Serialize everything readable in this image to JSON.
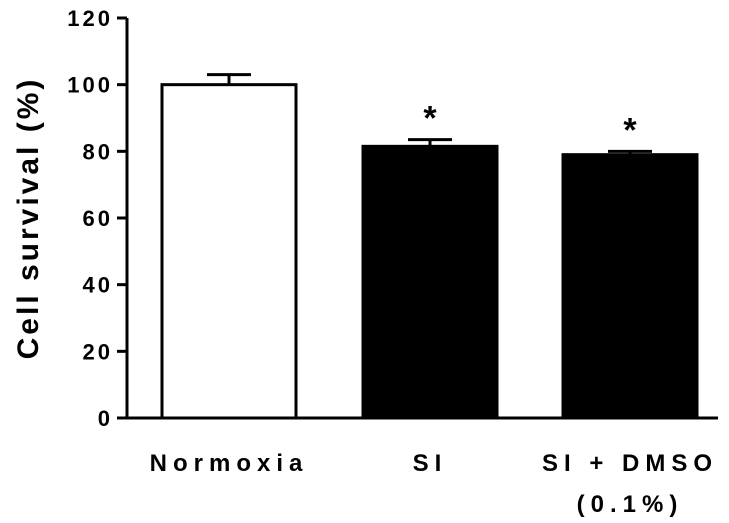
{
  "chart_data": {
    "type": "bar",
    "title": "",
    "xlabel": "",
    "ylabel": "Cell survival (%)",
    "ylim": [
      0,
      120
    ],
    "yticks": [
      0,
      20,
      40,
      60,
      80,
      100,
      120
    ],
    "categories": [
      "Normoxia",
      "SI",
      "SI + DMSO"
    ],
    "category_sublabels": [
      "",
      "",
      "(0.1%)"
    ],
    "values": [
      100,
      81.5,
      79
    ],
    "errors": [
      3,
      2,
      1
    ],
    "bar_colors": [
      "#ffffff",
      "#000000",
      "#000000"
    ],
    "significance": [
      "",
      "*",
      "*"
    ],
    "grid": false,
    "legend": "none"
  }
}
